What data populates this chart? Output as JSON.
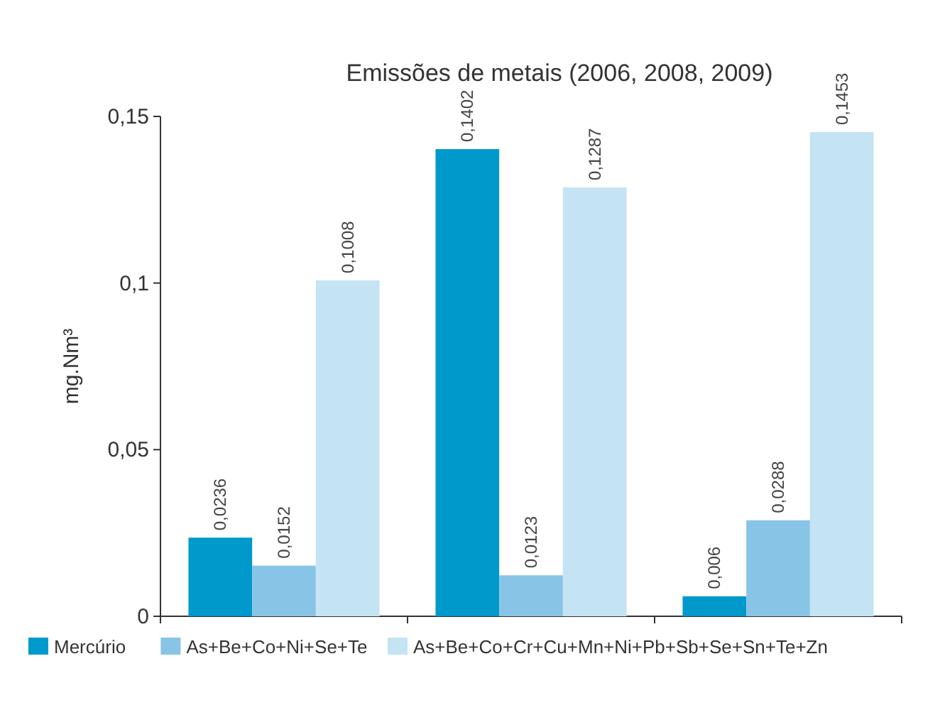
{
  "chart_data": {
    "type": "bar",
    "title": "Emissões de metais (2006, 2008, 2009)",
    "ylabel": "mg.Nm³",
    "categories": [
      null,
      null,
      null
    ],
    "series": [
      {
        "name": "Mercúrio",
        "color": "#0099cc",
        "values": [
          0.0236,
          0.1402,
          0.006
        ],
        "value_labels": [
          "0,0236",
          "0,1402",
          "0,006"
        ]
      },
      {
        "name": "As+Be+Co+Ni+Se+Te",
        "color": "#88c4e6",
        "values": [
          0.0152,
          0.0123,
          0.0288
        ],
        "value_labels": [
          "0,0152",
          "0,0123",
          "0,0288"
        ]
      },
      {
        "name": "As+Be+Co+Cr+Cu+Mn+Ni+Pb+Sb+Se+Sn+Te+Zn",
        "color": "#c4e3f3",
        "values": [
          0.1008,
          0.1287,
          0.1453
        ],
        "value_labels": [
          "0,1008",
          "0,1287",
          "0,1453"
        ]
      }
    ],
    "ylim": [
      0,
      0.15
    ],
    "yticks": [
      0,
      {
        "value": 0.05,
        "label": "0,05"
      },
      {
        "value": 0.1,
        "label": "0,1"
      },
      {
        "value": 0.15,
        "label": "0,15"
      }
    ],
    "legend": "bottom",
    "grid": false
  }
}
